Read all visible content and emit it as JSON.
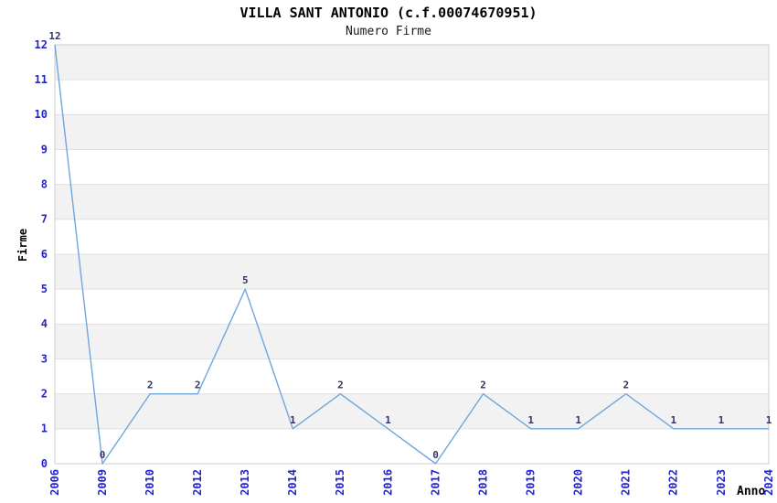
{
  "chart": {
    "title": "VILLA SANT ANTONIO (c.f.00074670951)",
    "subtitle": "Numero Firme",
    "ylabel": "Firme",
    "xlabel": "Anno"
  },
  "chart_data": {
    "type": "line",
    "title": "VILLA SANT ANTONIO (c.f.00074670951)",
    "subtitle": "Numero Firme",
    "xlabel": "Anno",
    "ylabel": "Firme",
    "categories": [
      "2006",
      "2009",
      "2010",
      "2012",
      "2013",
      "2014",
      "2015",
      "2016",
      "2017",
      "2018",
      "2019",
      "2020",
      "2021",
      "2022",
      "2023",
      "2024"
    ],
    "values": [
      12,
      0,
      2,
      2,
      5,
      1,
      2,
      1,
      0,
      2,
      1,
      1,
      2,
      1,
      1,
      1
    ],
    "ylim": [
      0,
      12
    ],
    "y_ticks": [
      0,
      1,
      2,
      3,
      4,
      5,
      6,
      7,
      8,
      9,
      10,
      11,
      12
    ],
    "grid": true,
    "legend": "none",
    "colors": {
      "line": "#6fa6dd",
      "band_fill": "#f2f2f2",
      "grid": "#e0e0e0",
      "border": "#cccccc",
      "tick_label": "#2424cc",
      "data_label": "#333366"
    }
  }
}
